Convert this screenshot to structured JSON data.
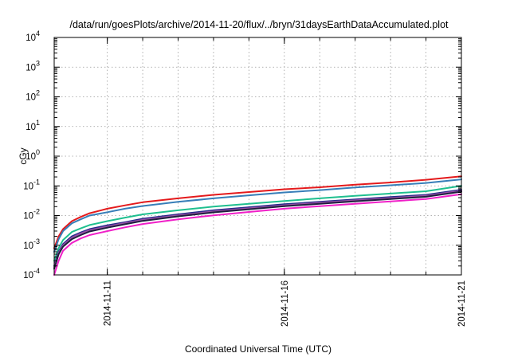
{
  "chart_data": {
    "type": "line",
    "title": "/data/run/goesPlots/archive/2014-11-20/flux/../bryn/31daysEarthDataAccumulated.plot",
    "xlabel": "Coordinated Universal Time (UTC)",
    "ylabel": "cGy",
    "y_scale": "log",
    "ylim": [
      0.0001,
      10000
    ],
    "xlim": [
      "2014-11-09T12:00",
      "2014-11-21T00:00"
    ],
    "grid": true,
    "legend": "none",
    "y_ticks": [
      {
        "base": "10",
        "exp": "-4"
      },
      {
        "base": "10",
        "exp": "-3"
      },
      {
        "base": "10",
        "exp": "-2"
      },
      {
        "base": "10",
        "exp": "-1"
      },
      {
        "base": "10",
        "exp": "0"
      },
      {
        "base": "10",
        "exp": "1"
      },
      {
        "base": "10",
        "exp": "2"
      },
      {
        "base": "10",
        "exp": "3"
      },
      {
        "base": "10",
        "exp": "4"
      }
    ],
    "x_tick_labels": [
      "2014-11-11",
      "2014-11-16",
      "2014-11-21"
    ],
    "x_tick_dates": [
      "2014-11-11T00:00",
      "2014-11-16T00:00",
      "2014-11-21T00:00"
    ],
    "x_grid_dates": [
      "2014-11-11T00:00",
      "2014-11-12T00:00",
      "2014-11-13T00:00",
      "2014-11-14T00:00",
      "2014-11-15T00:00",
      "2014-11-16T00:00",
      "2014-11-17T00:00",
      "2014-11-18T00:00",
      "2014-11-19T00:00",
      "2014-11-20T00:00",
      "2014-11-21T00:00"
    ],
    "x": [
      "2014-11-09T12:00",
      "2014-11-09T15:00",
      "2014-11-09T18:00",
      "2014-11-10T00:00",
      "2014-11-10T06:00",
      "2014-11-10T12:00",
      "2014-11-11T00:00",
      "2014-11-11T12:00",
      "2014-11-12T00:00",
      "2014-11-13T00:00",
      "2014-11-14T00:00",
      "2014-11-15T00:00",
      "2014-11-16T00:00",
      "2014-11-17T00:00",
      "2014-11-18T00:00",
      "2014-11-19T00:00",
      "2014-11-20T00:00",
      "2014-11-21T00:00"
    ],
    "series": [
      {
        "color": "#e41a1c",
        "values": [
          0.0008,
          0.002,
          0.0035,
          0.0065,
          0.009,
          0.012,
          0.017,
          0.022,
          0.028,
          0.038,
          0.05,
          0.062,
          0.077,
          0.09,
          0.11,
          0.13,
          0.16,
          0.21
        ]
      },
      {
        "color": "#377eb8",
        "values": [
          0.0006,
          0.0016,
          0.003,
          0.0055,
          0.0075,
          0.01,
          0.013,
          0.017,
          0.021,
          0.029,
          0.038,
          0.048,
          0.06,
          0.072,
          0.088,
          0.105,
          0.125,
          0.165
        ]
      },
      {
        "color": "#1fbf8f",
        "values": [
          0.0003,
          0.0008,
          0.0015,
          0.0028,
          0.0037,
          0.0048,
          0.0065,
          0.0085,
          0.011,
          0.015,
          0.02,
          0.025,
          0.031,
          0.038,
          0.046,
          0.055,
          0.066,
          0.1
        ]
      },
      {
        "color": "#252a8a",
        "values": [
          0.0002,
          0.0006,
          0.0011,
          0.002,
          0.0027,
          0.0035,
          0.0047,
          0.006,
          0.0078,
          0.011,
          0.015,
          0.019,
          0.024,
          0.029,
          0.035,
          0.042,
          0.05,
          0.074
        ]
      },
      {
        "color": "#984ea3",
        "values": [
          0.00018,
          0.00055,
          0.001,
          0.0018,
          0.0025,
          0.0032,
          0.0043,
          0.0056,
          0.0072,
          0.0102,
          0.0138,
          0.0175,
          0.0222,
          0.027,
          0.0325,
          0.039,
          0.0465,
          0.069
        ]
      },
      {
        "color": "#1f1f3f",
        "values": [
          0.00016,
          0.0005,
          0.0009,
          0.0016,
          0.0022,
          0.0029,
          0.0039,
          0.0051,
          0.0066,
          0.0094,
          0.0128,
          0.0163,
          0.0207,
          0.025,
          0.0302,
          0.0362,
          0.043,
          0.064
        ]
      },
      {
        "color": "#f020c8",
        "values": [
          0.0001,
          0.0003,
          0.00065,
          0.0012,
          0.0017,
          0.0022,
          0.003,
          0.004,
          0.0052,
          0.0075,
          0.0102,
          0.0132,
          0.017,
          0.0207,
          0.025,
          0.03,
          0.036,
          0.052
        ]
      }
    ]
  }
}
